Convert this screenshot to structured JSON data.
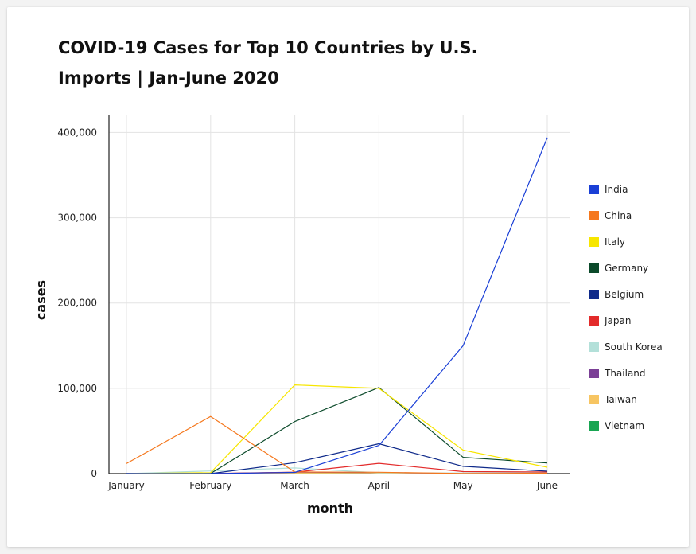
{
  "chart_data": {
    "type": "line",
    "title": "COVID-19 Cases for Top 10 Countries by U.S. Imports | Jan-June 2020",
    "xlabel": "month",
    "ylabel": "cases",
    "categories": [
      "January",
      "February",
      "March",
      "April",
      "May",
      "June"
    ],
    "ylim": [
      0,
      420000
    ],
    "yticks": [
      0,
      100000,
      200000,
      300000,
      400000
    ],
    "ytick_labels": [
      "0",
      "100,000",
      "200,000",
      "300,000",
      "400,000"
    ],
    "grid": true,
    "legend_position": "right",
    "series": [
      {
        "name": "India",
        "color": "#1a3fd6",
        "values": [
          1,
          2,
          1400,
          33000,
          150000,
          394000
        ]
      },
      {
        "name": "China",
        "color": "#f5781e",
        "values": [
          11800,
          67000,
          1900,
          1600,
          100,
          500
        ]
      },
      {
        "name": "Italy",
        "color": "#f7e600",
        "values": [
          2,
          1100,
          104000,
          100000,
          27500,
          7500
        ]
      },
      {
        "name": "Germany",
        "color": "#0b4a2a",
        "values": [
          5,
          60,
          61000,
          101000,
          19000,
          12400
        ]
      },
      {
        "name": "Belgium",
        "color": "#0f2a8a",
        "values": [
          1,
          1,
          12800,
          35000,
          8500,
          2800
        ]
      },
      {
        "name": "Japan",
        "color": "#e32b2b",
        "values": [
          17,
          220,
          1700,
          12000,
          2300,
          1900
        ]
      },
      {
        "name": "South Korea",
        "color": "#b3e0d9",
        "values": [
          11,
          3100,
          6600,
          980,
          730,
          1300
        ]
      },
      {
        "name": "Thailand",
        "color": "#7b3f96",
        "values": [
          19,
          23,
          1600,
          1350,
          120,
          100
        ]
      },
      {
        "name": "Taiwan",
        "color": "#f7c562",
        "values": [
          10,
          29,
          283,
          107,
          13,
          14
        ]
      },
      {
        "name": "Vietnam",
        "color": "#18a552",
        "values": [
          2,
          14,
          196,
          68,
          60,
          60
        ]
      }
    ]
  }
}
